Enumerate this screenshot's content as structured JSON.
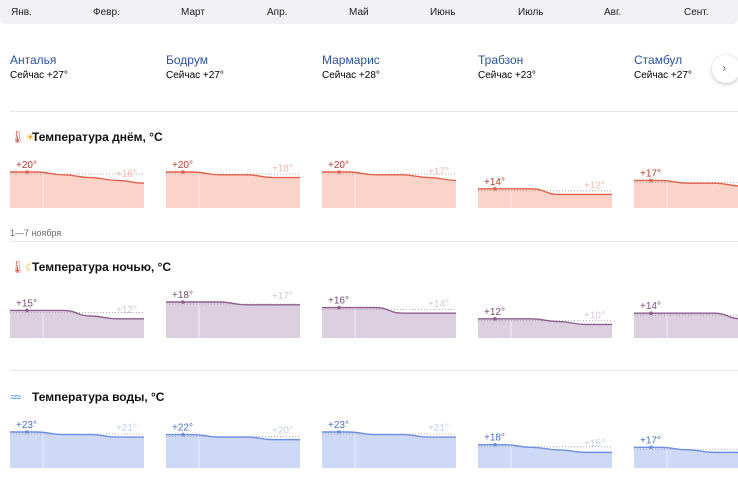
{
  "months": [
    "Янв.",
    "Февр.",
    "Март",
    "Апр.",
    "Май",
    "Июнь",
    "Июль",
    "Авг.",
    "Сент."
  ],
  "cities": [
    {
      "name": "Анталья",
      "now": "Сейчас +27°"
    },
    {
      "name": "Бодрум",
      "now": "Сейчас +27°"
    },
    {
      "name": "Мармарис",
      "now": "Сейчас +28°"
    },
    {
      "name": "Трабзон",
      "now": "Сейчас +23°"
    },
    {
      "name": "Стамбул",
      "now": "Сейчас +27°"
    }
  ],
  "next_icon": "chevron-right-icon",
  "period_label": "1—7 ноября",
  "sections": {
    "day": {
      "title": "Температура днём, °C",
      "icons": [
        "thermometer-icon",
        "sun-icon"
      ],
      "color": "#e2614c",
      "fill": "#fcd3c8",
      "label_color": "#c0392b",
      "end_color": "#f2b8ac"
    },
    "night": {
      "title": "Температура ночью, °C",
      "icons": [
        "thermometer-icon",
        "moon-icon"
      ],
      "color": "#8e5e8c",
      "fill": "#dccfe0",
      "label_color": "#7a4a7a",
      "end_color": "#d7c6da"
    },
    "water": {
      "title": "Температура воды, °C",
      "icons": [
        "waves-icon"
      ],
      "color": "#6d8fe0",
      "fill": "#cdd9f7",
      "label_color": "#4a6fc9",
      "end_color": "#c2cff2"
    }
  },
  "chart_data": [
    {
      "type": "area",
      "title": "Температура днём, °C",
      "unit": "°C",
      "series": [
        {
          "name": "Анталья",
          "start_label": "+20°",
          "end_label": "+16°",
          "values": [
            20,
            20,
            19,
            18,
            17,
            16
          ]
        },
        {
          "name": "Бодрум",
          "start_label": "+20°",
          "end_label": "+18°",
          "values": [
            20,
            20,
            19,
            19,
            18,
            18
          ]
        },
        {
          "name": "Мармарис",
          "start_label": "+20°",
          "end_label": "+17°",
          "values": [
            20,
            20,
            19,
            19,
            18,
            17
          ]
        },
        {
          "name": "Трабзон",
          "start_label": "+14°",
          "end_label": "+12°",
          "values": [
            14,
            14,
            14,
            12,
            12,
            12
          ]
        },
        {
          "name": "Стамбул",
          "start_label": "+17°",
          "end_label": "",
          "values": [
            17,
            17,
            16,
            16,
            15,
            15
          ]
        }
      ]
    },
    {
      "type": "area",
      "title": "Температура ночью, °C",
      "unit": "°C",
      "series": [
        {
          "name": "Анталья",
          "start_label": "+15°",
          "end_label": "+12°",
          "values": [
            15,
            15,
            15,
            13,
            12,
            12
          ]
        },
        {
          "name": "Бодрум",
          "start_label": "+18°",
          "end_label": "+17°",
          "values": [
            18,
            18,
            18,
            17,
            17,
            17
          ]
        },
        {
          "name": "Мармарис",
          "start_label": "+16°",
          "end_label": "+14°",
          "values": [
            16,
            16,
            16,
            14,
            14,
            14
          ]
        },
        {
          "name": "Трабзон",
          "start_label": "+12°",
          "end_label": "+10°",
          "values": [
            12,
            12,
            12,
            11,
            10,
            10
          ]
        },
        {
          "name": "Стамбул",
          "start_label": "+14°",
          "end_label": "",
          "values": [
            14,
            14,
            14,
            14,
            12,
            12
          ]
        }
      ]
    },
    {
      "type": "area",
      "title": "Температура воды, °C",
      "unit": "°C",
      "series": [
        {
          "name": "Анталья",
          "start_label": "+23°",
          "end_label": "+21°",
          "values": [
            23,
            23,
            22,
            22,
            21,
            21
          ]
        },
        {
          "name": "Бодрум",
          "start_label": "+22°",
          "end_label": "+20°",
          "values": [
            22,
            22,
            21,
            21,
            20,
            20
          ]
        },
        {
          "name": "Мармарис",
          "start_label": "+23°",
          "end_label": "+21°",
          "values": [
            23,
            23,
            22,
            22,
            21,
            21
          ]
        },
        {
          "name": "Трабзон",
          "start_label": "+18°",
          "end_label": "+15°",
          "values": [
            18,
            18,
            17,
            16,
            15,
            15
          ]
        },
        {
          "name": "Стамбул",
          "start_label": "+17°",
          "end_label": "",
          "values": [
            17,
            17,
            16,
            15,
            15,
            14
          ]
        }
      ]
    }
  ]
}
